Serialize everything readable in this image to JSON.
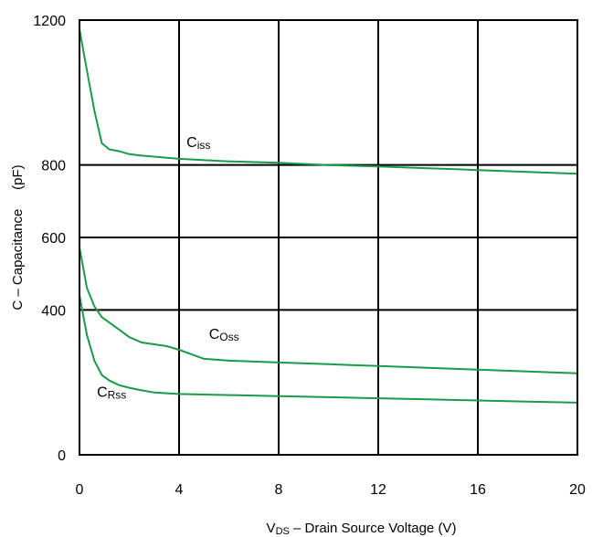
{
  "chart_data": {
    "type": "line",
    "xlabel_main": "V",
    "xlabel_sub": "DS",
    "xlabel_rest": " – Drain Source Voltage (V)",
    "ylabel": "C – Capacitance     (pF)",
    "xlim": [
      0,
      20
    ],
    "ylim": [
      0,
      1200
    ],
    "xticks": [
      0,
      4,
      8,
      12,
      16,
      20
    ],
    "yticks": [
      0,
      400,
      600,
      800,
      1200
    ],
    "xtick_labels": [
      "0",
      "4",
      "8",
      "12",
      "16",
      "20"
    ],
    "ytick_labels": [
      "0",
      "400",
      "600",
      "800",
      "1200"
    ],
    "gridlines_x": [
      4,
      8,
      12,
      16,
      20
    ],
    "gridlines_y": [
      400,
      600,
      800,
      1200
    ],
    "grid": true,
    "line_color": "#1a9a4a",
    "series": [
      {
        "name_main": "C",
        "name_sub": "iss",
        "label_at": [
          4.3,
          850
        ],
        "x": [
          0,
          0.3,
          0.6,
          0.9,
          1.2,
          1.6,
          2,
          2.5,
          3,
          3.5,
          4,
          6,
          8,
          10,
          12,
          14,
          16,
          18,
          20
        ],
        "y": [
          1175,
          1060,
          950,
          860,
          843,
          838,
          830,
          826,
          823,
          820,
          817,
          810,
          806,
          800,
          796,
          791,
          786,
          781,
          776
        ]
      },
      {
        "name_main": "C",
        "name_sub": "Oss",
        "label_at": [
          5.2,
          320
        ],
        "x": [
          0,
          0.3,
          0.6,
          0.9,
          1.2,
          1.6,
          2,
          2.5,
          3,
          3.5,
          4,
          5,
          6,
          8,
          10,
          12,
          14,
          16,
          18,
          20
        ],
        "y": [
          572,
          460,
          410,
          380,
          365,
          345,
          325,
          310,
          305,
          300,
          290,
          265,
          260,
          255,
          250,
          245,
          240,
          235,
          230,
          225
        ]
      },
      {
        "name_main": "C",
        "name_sub": "Rss",
        "label_at": [
          0.7,
          160
        ],
        "x": [
          0,
          0.3,
          0.6,
          0.9,
          1.2,
          1.6,
          2,
          2.5,
          3,
          3.5,
          4,
          6,
          8,
          10,
          12,
          14,
          16,
          18,
          20
        ],
        "y": [
          440,
          330,
          260,
          220,
          205,
          192,
          185,
          178,
          172,
          170,
          168,
          165,
          162,
          159,
          156,
          153,
          150,
          147,
          144
        ]
      }
    ]
  }
}
